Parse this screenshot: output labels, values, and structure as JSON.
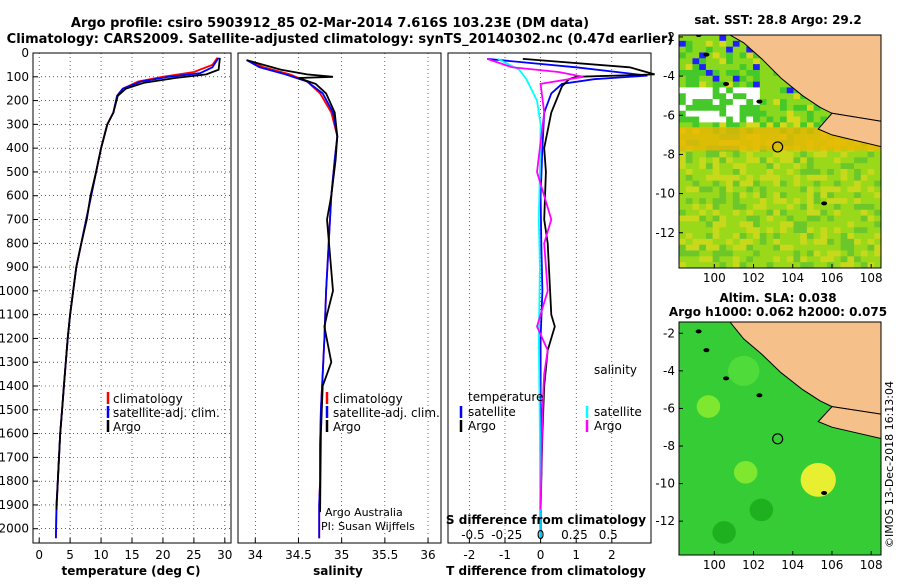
{
  "header": {
    "title_line1": "Argo profile: csiro 5903912_85 02-Mar-2014 7.616S 103.23E (DM data)",
    "title_line2": "Climatology: CARS2009. Satellite-adjusted climatology: synTS_20140302.nc (0.47d earlier)"
  },
  "colors": {
    "climatology": "#ff0000",
    "satellite": "#0000ff",
    "argo": "#000000",
    "sat_t": "#00c0ff",
    "sat_s": "#00ffff",
    "argo_s": "#ff00ff",
    "land": "#f5c08a",
    "sea": "#33cc33"
  },
  "chart_data": [
    {
      "type": "line",
      "name": "temperature",
      "xlabel": "temperature (deg C)",
      "ylabel": "",
      "xlim": [
        -1,
        31
      ],
      "ylim": [
        2060,
        0
      ],
      "xticks": [
        0,
        5,
        10,
        15,
        20,
        25,
        30
      ],
      "yticks": [
        0,
        100,
        200,
        300,
        400,
        500,
        600,
        700,
        800,
        900,
        1000,
        1100,
        1200,
        1300,
        1400,
        1500,
        1600,
        1700,
        1800,
        1900,
        2000
      ],
      "legend": [
        "climatology",
        "satellite-adj. clim.",
        "Argo"
      ],
      "series": [
        {
          "name": "climatology",
          "color": "#ff0000",
          "x": [
            28.8,
            28.0,
            25.0,
            20.0,
            16.0,
            13.5,
            12.6,
            12.0,
            11.0,
            10.0,
            9.2,
            8.4,
            7.6,
            6.8,
            6.0,
            5.5,
            5.0,
            4.6,
            4.3,
            4.0,
            3.7,
            3.4,
            3.2,
            3.0,
            2.8,
            2.7
          ],
          "y": [
            20,
            50,
            80,
            100,
            120,
            150,
            180,
            250,
            300,
            400,
            500,
            600,
            700,
            800,
            900,
            1000,
            1100,
            1200,
            1300,
            1400,
            1500,
            1600,
            1700,
            1800,
            1900,
            2040
          ]
        },
        {
          "name": "satellite-adj. clim.",
          "color": "#0000ff",
          "x": [
            29.0,
            28.0,
            26.0,
            21.0,
            16.5,
            13.5,
            12.6,
            12.0,
            11.0,
            10.0,
            9.2,
            8.4,
            7.6,
            6.8,
            6.0,
            5.5,
            5.0,
            4.6,
            4.3,
            4.0,
            3.7,
            3.4,
            3.2,
            3.0,
            2.8,
            2.7
          ],
          "y": [
            20,
            60,
            85,
            100,
            120,
            150,
            180,
            250,
            300,
            400,
            500,
            600,
            700,
            800,
            900,
            1000,
            1100,
            1200,
            1300,
            1400,
            1500,
            1600,
            1700,
            1800,
            1900,
            2040
          ]
        },
        {
          "name": "Argo",
          "color": "#000000",
          "x": [
            29.2,
            29.0,
            27.0,
            22.0,
            17.0,
            14.0,
            12.7,
            12.0,
            11.0,
            10.0,
            9.2,
            8.3,
            7.7,
            6.8,
            6.0,
            5.5,
            5.0,
            4.6,
            4.3,
            4.0,
            3.7,
            3.4,
            3.2,
            3.0,
            2.8
          ],
          "y": [
            20,
            70,
            90,
            105,
            125,
            150,
            180,
            250,
            300,
            400,
            500,
            600,
            700,
            800,
            900,
            1000,
            1100,
            1200,
            1300,
            1400,
            1500,
            1600,
            1700,
            1800,
            1920
          ]
        }
      ]
    },
    {
      "type": "line",
      "name": "salinity",
      "xlabel": "salinity",
      "xlim": [
        33.8,
        36.15
      ],
      "ylim": [
        2060,
        0
      ],
      "xticks": [
        34,
        34.5,
        35,
        35.5,
        36
      ],
      "xticklabels": [
        "34",
        "34.5",
        "35",
        "35.5",
        "36"
      ],
      "legend": [
        "climatology",
        "satellite-adj. clim.",
        "Argo"
      ],
      "annotation": [
        "Argo Australia",
        "PI: Susan Wijffels"
      ],
      "series": [
        {
          "name": "climatology",
          "color": "#ff0000",
          "x": [
            33.9,
            34.1,
            34.4,
            34.6,
            34.75,
            34.88,
            34.95,
            34.92,
            34.88,
            34.85,
            34.82,
            34.8,
            34.78,
            34.76,
            34.75,
            34.75,
            34.74,
            34.74,
            34.74
          ],
          "y": [
            30,
            60,
            90,
            120,
            170,
            250,
            350,
            450,
            600,
            800,
            1000,
            1200,
            1350,
            1500,
            1650,
            1800,
            1900,
            2000,
            2040
          ]
        },
        {
          "name": "satellite-adj. clim.",
          "color": "#0000ff",
          "x": [
            33.9,
            34.05,
            34.35,
            34.6,
            34.78,
            34.9,
            34.95,
            34.92,
            34.88,
            34.85,
            34.82,
            34.8,
            34.78,
            34.76,
            34.75,
            34.75,
            34.74,
            34.74,
            34.74
          ],
          "y": [
            30,
            60,
            90,
            120,
            170,
            250,
            350,
            450,
            600,
            800,
            1000,
            1200,
            1350,
            1500,
            1650,
            1800,
            1900,
            2000,
            2040
          ]
        },
        {
          "name": "Argo",
          "color": "#000000",
          "x": [
            33.9,
            34.3,
            34.6,
            34.9,
            34.5,
            34.7,
            34.82,
            34.92,
            34.95,
            34.93,
            34.88,
            34.83,
            34.9,
            34.83,
            34.8,
            34.88,
            34.78,
            34.76,
            34.75
          ],
          "y": [
            30,
            70,
            90,
            100,
            105,
            130,
            170,
            250,
            350,
            450,
            600,
            700,
            1000,
            1100,
            1150,
            1300,
            1400,
            1600,
            1930
          ]
        }
      ]
    },
    {
      "type": "line",
      "name": "differences",
      "xlabel": "T difference from climatology",
      "top_axis_label": "S difference from climatology",
      "xlim": [
        -2.6,
        3.1
      ],
      "ylim": [
        2060,
        0
      ],
      "xticks": [
        -2,
        -1,
        0,
        1,
        2
      ],
      "s_ticks": [
        -0.5,
        -0.25,
        0,
        0.25,
        0.5
      ],
      "s_ticklabels": [
        "-0.5",
        "-0.25",
        "0",
        "0.25",
        "0.5"
      ],
      "legend_temperature": {
        "title": "temperature",
        "items": [
          "satellite",
          "Argo"
        ]
      },
      "legend_salinity": {
        "title": "salinity",
        "items": [
          "satellite",
          "Argo"
        ]
      },
      "series": [
        {
          "name": "T satellite",
          "color": "#0000ff",
          "x": [
            -1.5,
            1.0,
            3.0,
            1.5,
            0.6,
            0.3,
            0.1,
            0.05,
            0.0,
            0.02,
            0.05,
            0.0,
            0.0,
            0.0,
            0.0
          ],
          "y": [
            25,
            60,
            95,
            110,
            130,
            170,
            250,
            400,
            600,
            800,
            1000,
            1200,
            1500,
            1800,
            2040
          ]
        },
        {
          "name": "T Argo",
          "color": "#000000",
          "x": [
            -0.5,
            2.5,
            3.2,
            1.0,
            0.8,
            0.6,
            0.3,
            0.1,
            0.15,
            0.1,
            0.2,
            0.3,
            0.4,
            0.2,
            0.1,
            0.05,
            0.0
          ],
          "y": [
            25,
            60,
            90,
            100,
            110,
            140,
            250,
            400,
            500,
            700,
            800,
            1100,
            1150,
            1250,
            1400,
            1600,
            1920
          ]
        },
        {
          "name": "S satellite",
          "color": "#00ffff",
          "x": [
            -1.2,
            -0.6,
            -0.4,
            -0.1,
            0.0,
            -0.02,
            -0.05,
            -0.02,
            -0.05,
            -0.02,
            -0.02
          ],
          "y": [
            25,
            70,
            110,
            200,
            300,
            500,
            700,
            900,
            1200,
            1600,
            2040
          ]
        },
        {
          "name": "S Argo",
          "color": "#ff00ff",
          "x": [
            -1.5,
            -0.8,
            0.5,
            1.2,
            0.0,
            0.1,
            -0.1,
            0.3,
            0.1,
            0.2,
            -0.1,
            0.2,
            0.1,
            0.05,
            0.0
          ],
          "y": [
            25,
            60,
            80,
            100,
            130,
            250,
            500,
            700,
            800,
            1000,
            1150,
            1250,
            1350,
            1500,
            1920
          ]
        }
      ]
    },
    {
      "type": "heatmap",
      "name": "sst_map",
      "title": "sat. SST: 28.8 Argo: 29.2",
      "xlim": [
        98.2,
        108.5
      ],
      "ylim": [
        -13.8,
        -1.9
      ],
      "xticks": [
        100,
        102,
        104,
        106,
        108
      ],
      "yticks": [
        -2,
        -4,
        -6,
        -8,
        -10,
        -12
      ],
      "xticklabels": [
        "100",
        "102",
        "104",
        "106",
        "108"
      ],
      "yticklabels": [
        "-2",
        "-4",
        "-6",
        "-8",
        "-10",
        "-12"
      ],
      "float_position": [
        103.23,
        -7.616
      ]
    },
    {
      "type": "heatmap",
      "name": "sla_map",
      "title": "Altim. SLA: 0.038",
      "subtitle": "Argo h1000: 0.062 h2000: 0.075",
      "xlim": [
        98.2,
        108.5
      ],
      "ylim": [
        -13.8,
        -1.4
      ],
      "xticks": [
        100,
        102,
        104,
        106,
        108
      ],
      "yticks": [
        -2,
        -4,
        -6,
        -8,
        -10,
        -12
      ],
      "xticklabels": [
        "100",
        "102",
        "104",
        "106",
        "108"
      ],
      "yticklabels": [
        "-2",
        "-4",
        "-6",
        "-8",
        "-10",
        "-12"
      ],
      "float_position": [
        103.23,
        -7.616
      ]
    }
  ],
  "credit": "©IMOS 13-Dec-2018 16:13:04"
}
